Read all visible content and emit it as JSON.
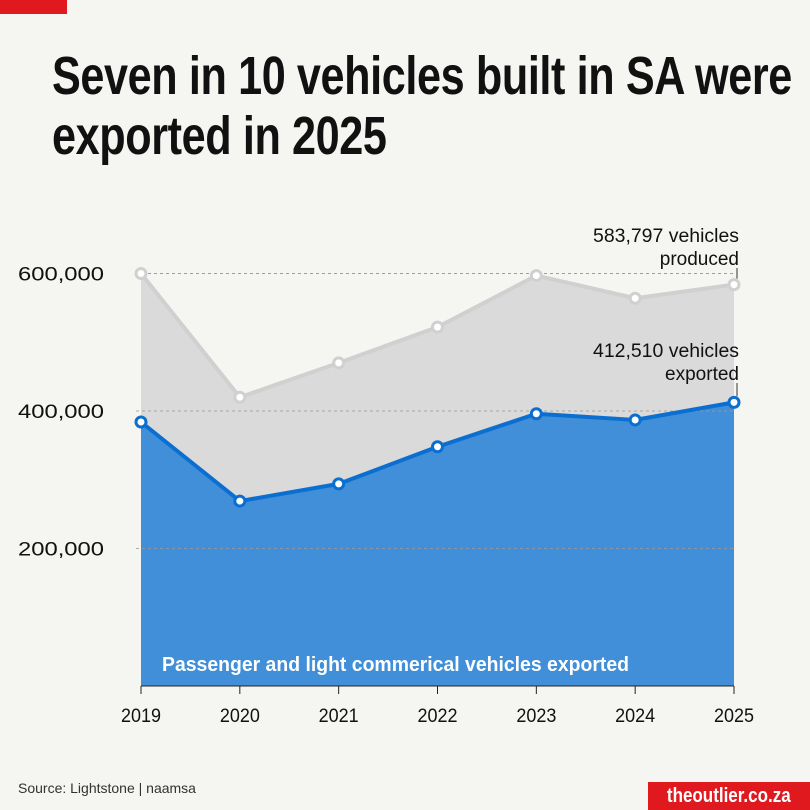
{
  "title": "Seven in 10 vehicles built in SA were exported in 2025",
  "source": "Source: Lightstone | naamsa",
  "brand": "theoutlier.co.za",
  "colors": {
    "accent_red": "#e0191f",
    "exported_fill": "#408fd8",
    "exported_line": "#0a6fd0",
    "produced_fill": "#dadada",
    "produced_line": "#d0d0d0"
  },
  "chart_data": {
    "type": "area",
    "categories": [
      "2019",
      "2020",
      "2021",
      "2022",
      "2023",
      "2024",
      "2025"
    ],
    "ylim": [
      0,
      620000
    ],
    "yticks": [
      200000,
      400000,
      600000
    ],
    "ytick_labels": [
      "200,000",
      "400,000",
      "600,000"
    ],
    "grid": "dashed horizontal",
    "series": [
      {
        "key": "produced",
        "values": [
          600000,
          420000,
          470000,
          522000,
          597000,
          564000,
          583797
        ]
      },
      {
        "key": "exported",
        "name": "Passenger and light commerical vehicles exported",
        "values": [
          384000,
          269000,
          294000,
          348000,
          396000,
          387000,
          412510
        ]
      }
    ],
    "annotations": [
      {
        "series": "produced",
        "line1": "583,797 vehicles",
        "line2": "produced"
      },
      {
        "series": "exported",
        "line1": "412,510 vehicles",
        "line2": "exported"
      }
    ]
  }
}
